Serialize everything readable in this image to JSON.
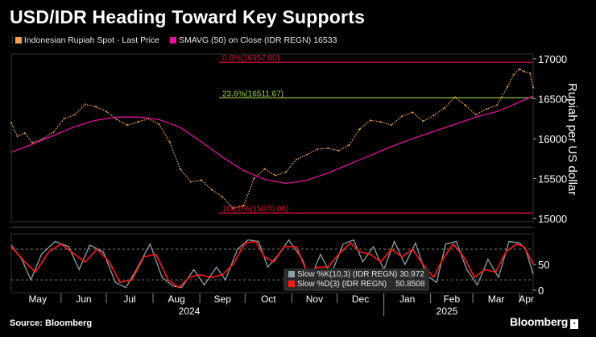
{
  "title": "USD/IDR Heading Toward Key Supports",
  "legend": {
    "series1": "Indonesian Rupiah Spot - Last Price",
    "series1_color": "#f0a050",
    "series2": "SMAVG (50)  on Close (IDR REGN) 16533",
    "series2_color": "#e0139a"
  },
  "y_axis_label": "Rupiah per US dollar",
  "fib": {
    "top_label": "0.0%(16957.00)",
    "mid_label": "23.6%(16511.67)",
    "bottom_label": "100.0%(15070.00)",
    "top_color": "#e0103a",
    "mid_color": "#9bd14a",
    "bottom_color": "#e0103a"
  },
  "stochastic": {
    "k_label": "Slow %K(10,3) (IDR REGN) 30.972",
    "d_label": "Slow %D(3) (IDR REGN)    50.8508",
    "k_color": "#8aa3a8",
    "d_color": "#ff1a1a"
  },
  "months": [
    "May",
    "Jun",
    "Jul",
    "Aug",
    "Sep",
    "Oct",
    "Nov",
    "Dec",
    "Jan",
    "Feb",
    "Mar",
    "Apr"
  ],
  "years": [
    "2024",
    "2025"
  ],
  "source": "Source: Bloomberg",
  "brand": "Bloomberg",
  "chart_data": {
    "type": "line",
    "x_range": [
      "2024-04-29",
      "2025-04-10"
    ],
    "price_axis": {
      "ticks": [
        15000,
        15500,
        16000,
        16500,
        17000
      ],
      "ylim": [
        14960,
        17060
      ]
    },
    "stochastic_axis": {
      "ticks": [
        0,
        50
      ],
      "ylim": [
        -5,
        110
      ],
      "guide_lines": [
        20,
        80
      ]
    },
    "fibonacci_levels": [
      16957.0,
      16511.67,
      15070.0
    ],
    "price_series": [
      [
        "2024-04-29",
        16200
      ],
      [
        "2024-05-03",
        16030
      ],
      [
        "2024-05-08",
        16070
      ],
      [
        "2024-05-13",
        15950
      ],
      [
        "2024-05-20",
        16000
      ],
      [
        "2024-05-27",
        16080
      ],
      [
        "2024-06-03",
        16250
      ],
      [
        "2024-06-10",
        16300
      ],
      [
        "2024-06-17",
        16430
      ],
      [
        "2024-06-24",
        16400
      ],
      [
        "2024-07-01",
        16340
      ],
      [
        "2024-07-08",
        16240
      ],
      [
        "2024-07-15",
        16170
      ],
      [
        "2024-07-22",
        16210
      ],
      [
        "2024-07-29",
        16250
      ],
      [
        "2024-08-05",
        16180
      ],
      [
        "2024-08-12",
        15960
      ],
      [
        "2024-08-19",
        15620
      ],
      [
        "2024-08-26",
        15460
      ],
      [
        "2024-09-02",
        15480
      ],
      [
        "2024-09-09",
        15360
      ],
      [
        "2024-09-16",
        15270
      ],
      [
        "2024-09-23",
        15130
      ],
      [
        "2024-09-30",
        15160
      ],
      [
        "2024-10-07",
        15500
      ],
      [
        "2024-10-14",
        15620
      ],
      [
        "2024-10-21",
        15540
      ],
      [
        "2024-10-28",
        15580
      ],
      [
        "2024-11-04",
        15740
      ],
      [
        "2024-11-11",
        15800
      ],
      [
        "2024-11-18",
        15870
      ],
      [
        "2024-11-25",
        15880
      ],
      [
        "2024-12-02",
        15850
      ],
      [
        "2024-12-09",
        15920
      ],
      [
        "2024-12-16",
        16120
      ],
      [
        "2024-12-23",
        16230
      ],
      [
        "2024-12-30",
        16210
      ],
      [
        "2025-01-06",
        16170
      ],
      [
        "2025-01-13",
        16280
      ],
      [
        "2025-01-20",
        16330
      ],
      [
        "2025-01-27",
        16220
      ],
      [
        "2025-02-03",
        16290
      ],
      [
        "2025-02-10",
        16380
      ],
      [
        "2025-02-17",
        16520
      ],
      [
        "2025-02-24",
        16420
      ],
      [
        "2025-03-03",
        16300
      ],
      [
        "2025-03-10",
        16370
      ],
      [
        "2025-03-17",
        16420
      ],
      [
        "2025-03-24",
        16650
      ],
      [
        "2025-03-28",
        16800
      ],
      [
        "2025-04-01",
        16870
      ],
      [
        "2025-04-04",
        16840
      ],
      [
        "2025-04-08",
        16820
      ],
      [
        "2025-04-10",
        16640
      ]
    ],
    "smavg_series": [
      [
        "2024-04-29",
        15830
      ],
      [
        "2024-05-13",
        15930
      ],
      [
        "2024-05-27",
        16040
      ],
      [
        "2024-06-10",
        16150
      ],
      [
        "2024-06-24",
        16230
      ],
      [
        "2024-07-08",
        16270
      ],
      [
        "2024-07-22",
        16270
      ],
      [
        "2024-08-05",
        16240
      ],
      [
        "2024-08-19",
        16140
      ],
      [
        "2024-09-02",
        15960
      ],
      [
        "2024-09-16",
        15770
      ],
      [
        "2024-09-30",
        15600
      ],
      [
        "2024-10-14",
        15490
      ],
      [
        "2024-10-28",
        15440
      ],
      [
        "2024-11-11",
        15480
      ],
      [
        "2024-11-25",
        15570
      ],
      [
        "2024-12-09",
        15680
      ],
      [
        "2024-12-23",
        15790
      ],
      [
        "2025-01-06",
        15900
      ],
      [
        "2025-01-20",
        16000
      ],
      [
        "2025-02-03",
        16090
      ],
      [
        "2025-02-17",
        16180
      ],
      [
        "2025-03-03",
        16270
      ],
      [
        "2025-03-17",
        16340
      ],
      [
        "2025-03-31",
        16450
      ],
      [
        "2025-04-10",
        16533
      ]
    ],
    "slow_k_series": [
      [
        "2024-04-29",
        88
      ],
      [
        "2024-05-06",
        60
      ],
      [
        "2024-05-12",
        20
      ],
      [
        "2024-05-19",
        70
      ],
      [
        "2024-05-28",
        95
      ],
      [
        "2024-06-06",
        85
      ],
      [
        "2024-06-13",
        40
      ],
      [
        "2024-06-20",
        88
      ],
      [
        "2024-06-29",
        75
      ],
      [
        "2024-07-07",
        15
      ],
      [
        "2024-07-14",
        5
      ],
      [
        "2024-07-21",
        40
      ],
      [
        "2024-07-30",
        90
      ],
      [
        "2024-08-07",
        25
      ],
      [
        "2024-08-14",
        8
      ],
      [
        "2024-08-20",
        5
      ],
      [
        "2024-08-28",
        40
      ],
      [
        "2024-09-04",
        10
      ],
      [
        "2024-09-12",
        45
      ],
      [
        "2024-09-18",
        20
      ],
      [
        "2024-09-26",
        80
      ],
      [
        "2024-10-03",
        98
      ],
      [
        "2024-10-10",
        95
      ],
      [
        "2024-10-16",
        45
      ],
      [
        "2024-10-22",
        65
      ],
      [
        "2024-10-30",
        98
      ],
      [
        "2024-11-08",
        60
      ],
      [
        "2024-11-13",
        20
      ],
      [
        "2024-11-20",
        70
      ],
      [
        "2024-11-27",
        30
      ],
      [
        "2024-12-05",
        90
      ],
      [
        "2024-12-12",
        98
      ],
      [
        "2024-12-18",
        55
      ],
      [
        "2024-12-25",
        85
      ],
      [
        "2025-01-01",
        40
      ],
      [
        "2025-01-08",
        95
      ],
      [
        "2025-01-15",
        50
      ],
      [
        "2025-01-22",
        92
      ],
      [
        "2025-01-29",
        30
      ],
      [
        "2025-02-05",
        15
      ],
      [
        "2025-02-11",
        90
      ],
      [
        "2025-02-18",
        95
      ],
      [
        "2025-02-25",
        40
      ],
      [
        "2025-03-04",
        10
      ],
      [
        "2025-03-11",
        60
      ],
      [
        "2025-03-18",
        25
      ],
      [
        "2025-03-25",
        95
      ],
      [
        "2025-04-01",
        92
      ],
      [
        "2025-04-05",
        80
      ],
      [
        "2025-04-10",
        31
      ]
    ],
    "slow_d_series": [
      [
        "2024-04-29",
        85
      ],
      [
        "2024-05-08",
        55
      ],
      [
        "2024-05-15",
        35
      ],
      [
        "2024-05-24",
        75
      ],
      [
        "2024-06-01",
        90
      ],
      [
        "2024-06-10",
        70
      ],
      [
        "2024-06-17",
        55
      ],
      [
        "2024-06-25",
        80
      ],
      [
        "2024-07-03",
        55
      ],
      [
        "2024-07-10",
        15
      ],
      [
        "2024-07-18",
        20
      ],
      [
        "2024-07-26",
        65
      ],
      [
        "2024-08-03",
        70
      ],
      [
        "2024-08-11",
        20
      ],
      [
        "2024-08-18",
        5
      ],
      [
        "2024-08-25",
        25
      ],
      [
        "2024-09-01",
        30
      ],
      [
        "2024-09-09",
        25
      ],
      [
        "2024-09-16",
        30
      ],
      [
        "2024-09-23",
        50
      ],
      [
        "2024-10-01",
        92
      ],
      [
        "2024-10-08",
        95
      ],
      [
        "2024-10-14",
        65
      ],
      [
        "2024-10-20",
        55
      ],
      [
        "2024-10-27",
        85
      ],
      [
        "2024-11-04",
        85
      ],
      [
        "2024-11-11",
        35
      ],
      [
        "2024-11-18",
        45
      ],
      [
        "2024-11-25",
        45
      ],
      [
        "2024-12-02",
        70
      ],
      [
        "2024-12-10",
        92
      ],
      [
        "2024-12-16",
        75
      ],
      [
        "2024-12-23",
        70
      ],
      [
        "2024-12-30",
        55
      ],
      [
        "2025-01-06",
        80
      ],
      [
        "2025-01-13",
        65
      ],
      [
        "2025-01-20",
        80
      ],
      [
        "2025-01-27",
        50
      ],
      [
        "2025-02-03",
        25
      ],
      [
        "2025-02-09",
        60
      ],
      [
        "2025-02-16",
        90
      ],
      [
        "2025-02-23",
        65
      ],
      [
        "2025-03-02",
        25
      ],
      [
        "2025-03-09",
        40
      ],
      [
        "2025-03-16",
        35
      ],
      [
        "2025-03-23",
        75
      ],
      [
        "2025-03-30",
        90
      ],
      [
        "2025-04-04",
        85
      ],
      [
        "2025-04-10",
        51
      ]
    ]
  }
}
